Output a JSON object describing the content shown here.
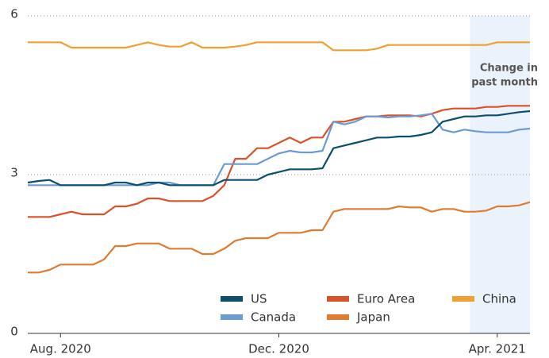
{
  "chart_data": {
    "type": "line",
    "categories": [
      null,
      null,
      null,
      "Aug. 2020",
      null,
      null,
      null,
      null,
      null,
      null,
      null,
      null,
      null,
      null,
      null,
      null,
      null,
      null,
      null,
      null,
      null,
      null,
      null,
      "Dec. 2020",
      null,
      null,
      null,
      null,
      null,
      null,
      null,
      null,
      null,
      null,
      null,
      null,
      null,
      null,
      null,
      null,
      null,
      null,
      null,
      "Apr. 2021",
      null,
      null,
      null
    ],
    "ylim": [
      0,
      6
    ],
    "yticks": [
      0,
      3,
      6
    ],
    "grid": true,
    "highlight": {
      "text": [
        "Change in",
        "past month"
      ],
      "start": 41
    },
    "series": [
      {
        "name": "US",
        "color": "#0b4f6c",
        "values": [
          2.85,
          2.88,
          2.9,
          2.8,
          2.8,
          2.8,
          2.8,
          2.8,
          2.85,
          2.85,
          2.8,
          2.85,
          2.85,
          2.8,
          2.8,
          2.8,
          2.8,
          2.8,
          2.9,
          2.9,
          2.9,
          2.9,
          3.0,
          3.05,
          3.1,
          3.1,
          3.1,
          3.12,
          3.5,
          3.55,
          3.6,
          3.65,
          3.7,
          3.7,
          3.72,
          3.72,
          3.75,
          3.8,
          4.0,
          4.05,
          4.1,
          4.1,
          4.12,
          4.12,
          4.15,
          4.18,
          4.2
        ]
      },
      {
        "name": "Canada",
        "color": "#6b9bd1",
        "values": [
          2.8,
          2.8,
          2.8,
          2.8,
          2.8,
          2.8,
          2.8,
          2.8,
          2.8,
          2.8,
          2.8,
          2.8,
          2.85,
          2.85,
          2.8,
          2.8,
          2.8,
          2.8,
          3.2,
          3.2,
          3.2,
          3.2,
          3.3,
          3.4,
          3.45,
          3.42,
          3.42,
          3.45,
          4.0,
          3.95,
          4.0,
          4.1,
          4.1,
          4.08,
          4.1,
          4.1,
          4.12,
          4.15,
          3.85,
          3.8,
          3.85,
          3.82,
          3.8,
          3.8,
          3.8,
          3.85,
          3.87
        ]
      },
      {
        "name": "Euro Area",
        "color": "#d9522a",
        "values": [
          2.2,
          2.2,
          2.2,
          2.25,
          2.3,
          2.25,
          2.25,
          2.25,
          2.4,
          2.4,
          2.45,
          2.55,
          2.55,
          2.5,
          2.5,
          2.5,
          2.5,
          2.6,
          2.8,
          3.3,
          3.3,
          3.5,
          3.5,
          3.6,
          3.7,
          3.6,
          3.7,
          3.7,
          4.0,
          4.0,
          4.05,
          4.1,
          4.1,
          4.12,
          4.12,
          4.12,
          4.1,
          4.15,
          4.22,
          4.25,
          4.25,
          4.25,
          4.28,
          4.28,
          4.3,
          4.3,
          4.3
        ]
      },
      {
        "name": "Japan",
        "color": "#e07b30",
        "values": [
          1.15,
          1.15,
          1.2,
          1.3,
          1.3,
          1.3,
          1.3,
          1.4,
          1.65,
          1.65,
          1.7,
          1.7,
          1.7,
          1.6,
          1.6,
          1.6,
          1.5,
          1.5,
          1.6,
          1.75,
          1.8,
          1.8,
          1.8,
          1.9,
          1.9,
          1.9,
          1.95,
          1.95,
          2.3,
          2.35,
          2.35,
          2.35,
          2.35,
          2.35,
          2.4,
          2.38,
          2.38,
          2.3,
          2.35,
          2.35,
          2.3,
          2.3,
          2.32,
          2.4,
          2.4,
          2.42,
          2.48
        ]
      },
      {
        "name": "China",
        "color": "#f0a030",
        "values": [
          5.5,
          5.5,
          5.5,
          5.5,
          5.4,
          5.4,
          5.4,
          5.4,
          5.4,
          5.4,
          5.45,
          5.5,
          5.45,
          5.42,
          5.42,
          5.5,
          5.4,
          5.4,
          5.4,
          5.42,
          5.45,
          5.5,
          5.5,
          5.5,
          5.5,
          5.5,
          5.5,
          5.5,
          5.35,
          5.35,
          5.35,
          5.35,
          5.38,
          5.45,
          5.45,
          5.45,
          5.45,
          5.45,
          5.45,
          5.45,
          5.45,
          5.45,
          5.45,
          5.5,
          5.5,
          5.5,
          5.5
        ]
      }
    ]
  }
}
